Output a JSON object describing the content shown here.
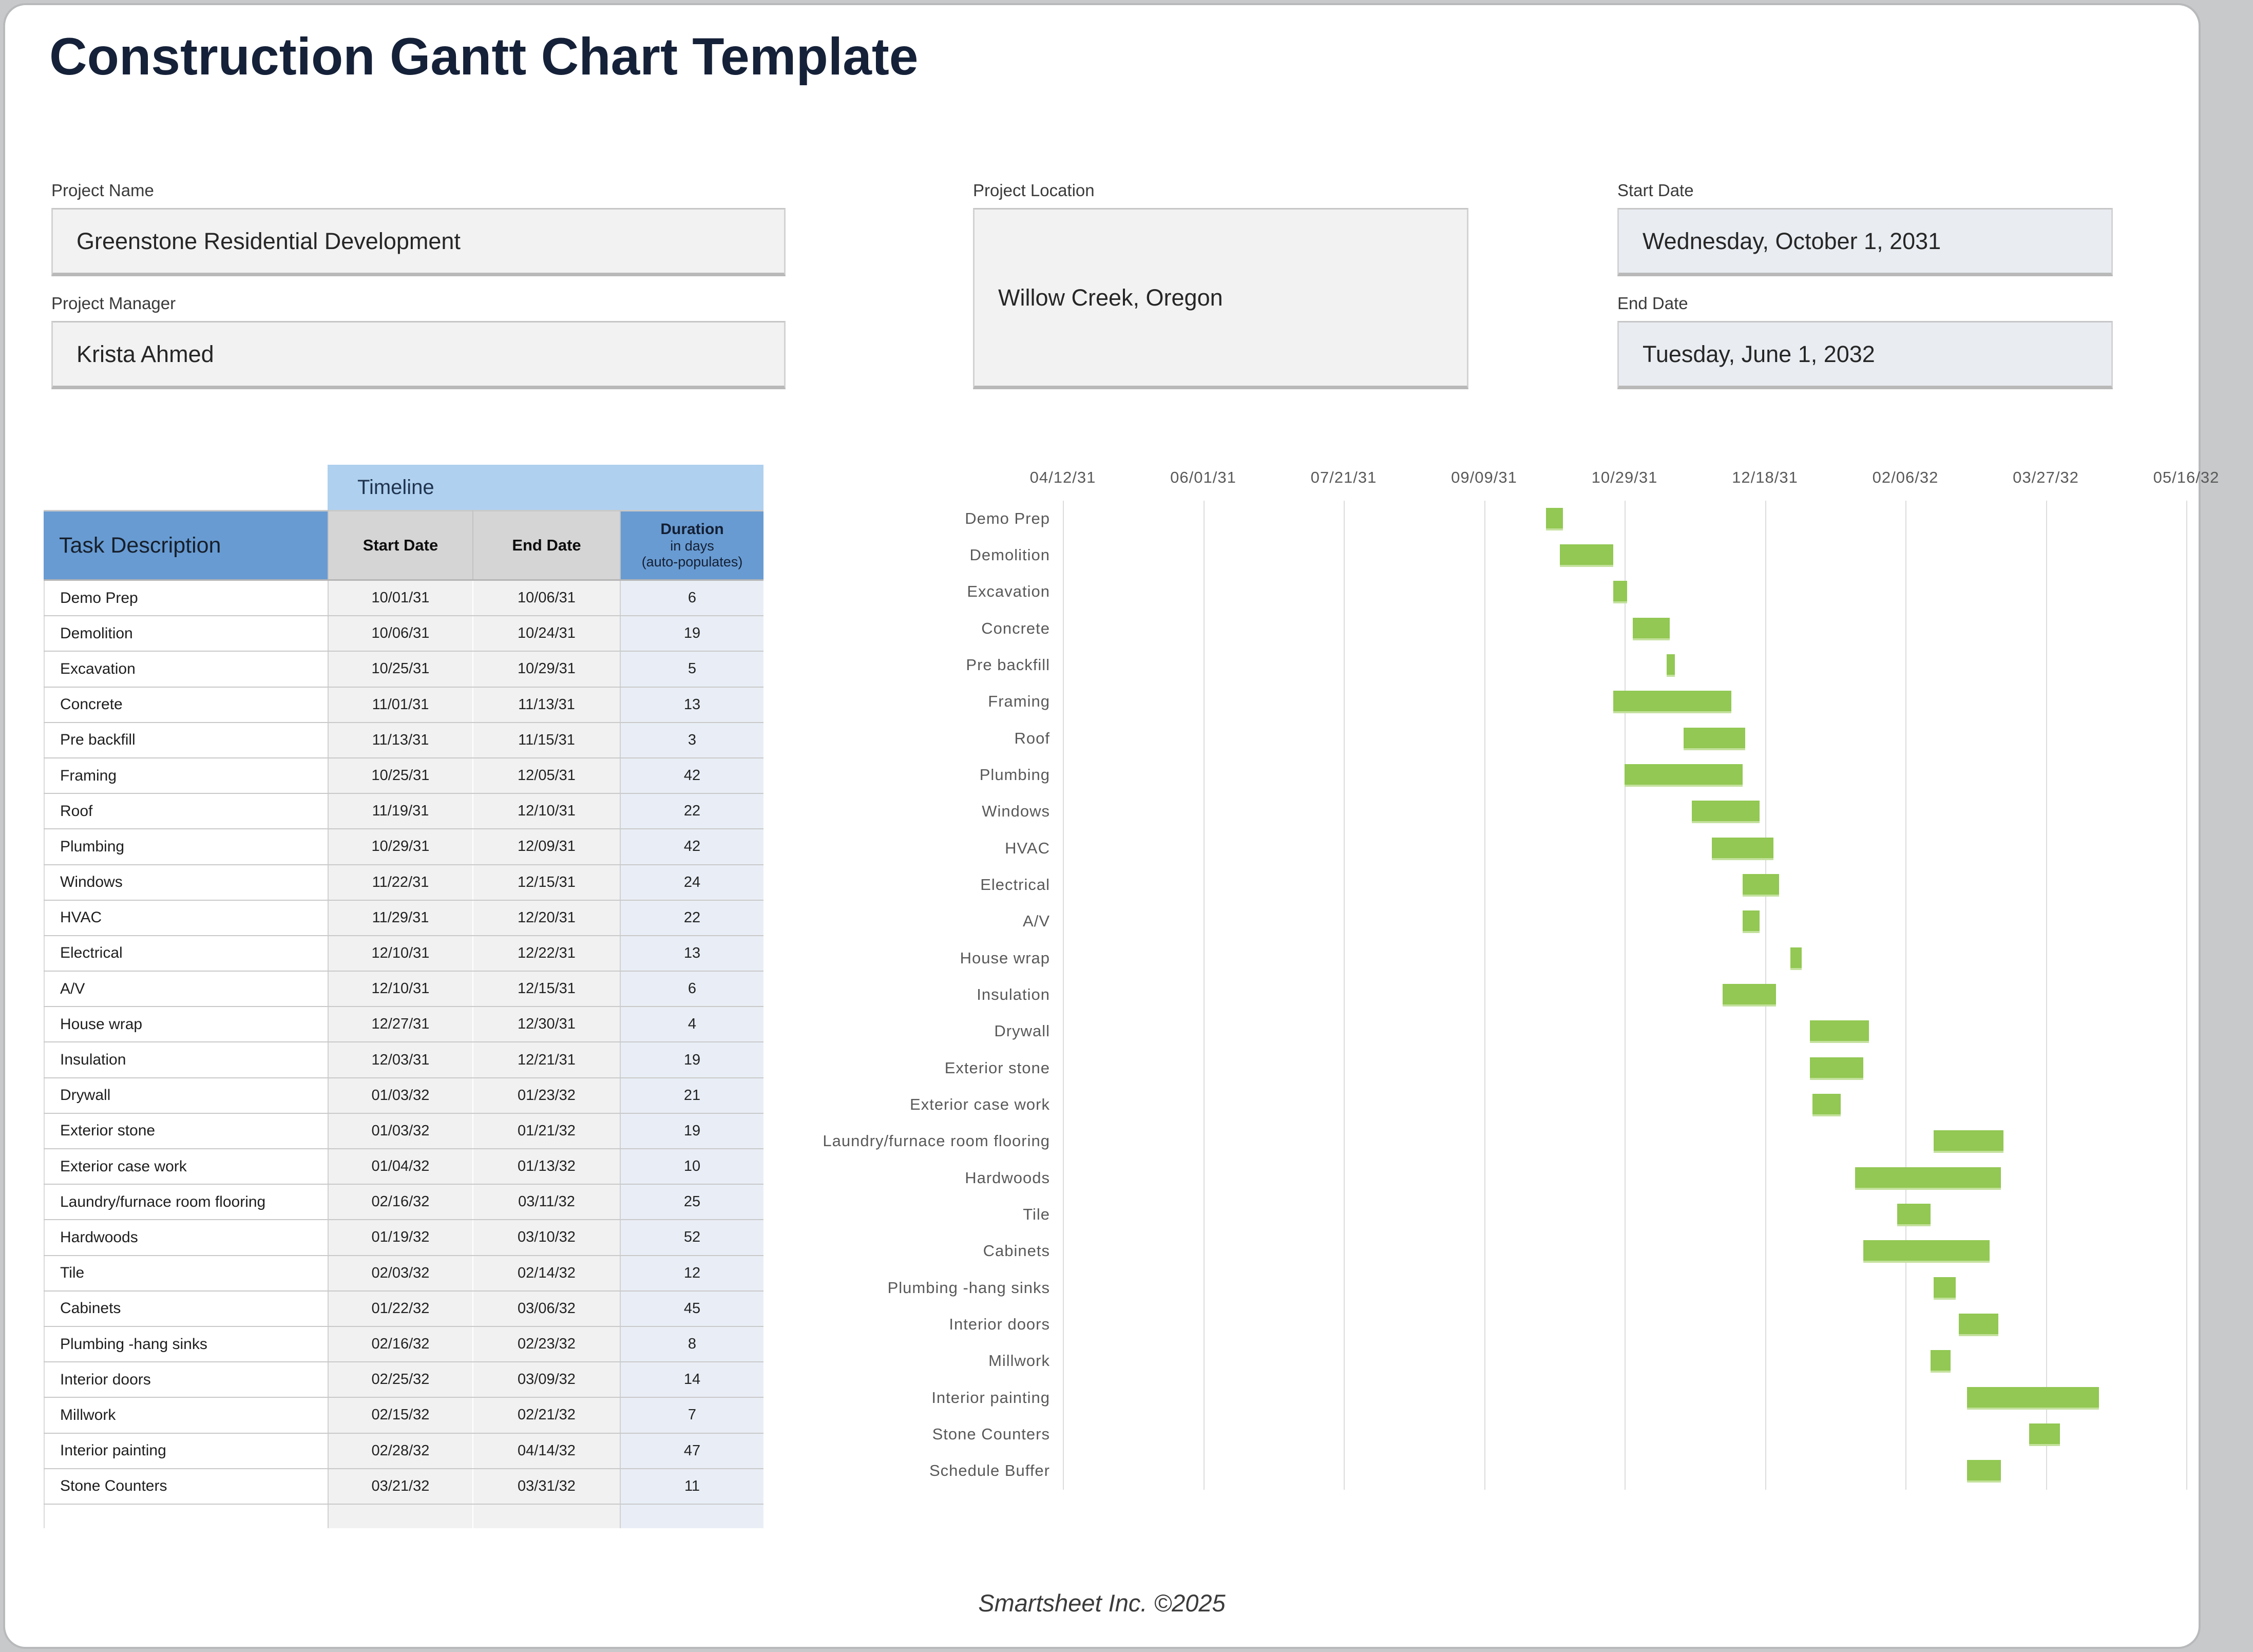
{
  "title": "Construction Gantt Chart Template",
  "fields": {
    "project_name": {
      "label": "Project Name",
      "value": "Greenstone Residential Development"
    },
    "project_manager": {
      "label": "Project Manager",
      "value": "Krista Ahmed"
    },
    "project_location": {
      "label": "Project Location",
      "value": "Willow Creek, Oregon"
    },
    "start_date": {
      "label": "Start Date",
      "value": "Wednesday, October 1, 2031"
    },
    "end_date": {
      "label": "End Date",
      "value": "Tuesday, June 1, 2032"
    }
  },
  "table": {
    "timeline_header": "Timeline",
    "columns": {
      "task": "Task Description",
      "start": "Start Date",
      "end": "End Date",
      "duration_title": "Duration",
      "duration_sub1": "in days",
      "duration_sub2": "(auto-populates)"
    },
    "rows": [
      {
        "task": "Demo Prep",
        "start": "10/01/31",
        "end": "10/06/31",
        "duration": "6"
      },
      {
        "task": "Demolition",
        "start": "10/06/31",
        "end": "10/24/31",
        "duration": "19"
      },
      {
        "task": "Excavation",
        "start": "10/25/31",
        "end": "10/29/31",
        "duration": "5"
      },
      {
        "task": "Concrete",
        "start": "11/01/31",
        "end": "11/13/31",
        "duration": "13"
      },
      {
        "task": "Pre backfill",
        "start": "11/13/31",
        "end": "11/15/31",
        "duration": "3"
      },
      {
        "task": "Framing",
        "start": "10/25/31",
        "end": "12/05/31",
        "duration": "42"
      },
      {
        "task": "Roof",
        "start": "11/19/31",
        "end": "12/10/31",
        "duration": "22"
      },
      {
        "task": "Plumbing",
        "start": "10/29/31",
        "end": "12/09/31",
        "duration": "42"
      },
      {
        "task": "Windows",
        "start": "11/22/31",
        "end": "12/15/31",
        "duration": "24"
      },
      {
        "task": "HVAC",
        "start": "11/29/31",
        "end": "12/20/31",
        "duration": "22"
      },
      {
        "task": "Electrical",
        "start": "12/10/31",
        "end": "12/22/31",
        "duration": "13"
      },
      {
        "task": "A/V",
        "start": "12/10/31",
        "end": "12/15/31",
        "duration": "6"
      },
      {
        "task": "House wrap",
        "start": "12/27/31",
        "end": "12/30/31",
        "duration": "4"
      },
      {
        "task": "Insulation",
        "start": "12/03/31",
        "end": "12/21/31",
        "duration": "19"
      },
      {
        "task": "Drywall",
        "start": "01/03/32",
        "end": "01/23/32",
        "duration": "21"
      },
      {
        "task": "Exterior stone",
        "start": "01/03/32",
        "end": "01/21/32",
        "duration": "19"
      },
      {
        "task": "Exterior case work",
        "start": "01/04/32",
        "end": "01/13/32",
        "duration": "10"
      },
      {
        "task": "Laundry/furnace room flooring",
        "start": "02/16/32",
        "end": "03/11/32",
        "duration": "25"
      },
      {
        "task": "Hardwoods",
        "start": "01/19/32",
        "end": "03/10/32",
        "duration": "52"
      },
      {
        "task": "Tile",
        "start": "02/03/32",
        "end": "02/14/32",
        "duration": "12"
      },
      {
        "task": "Cabinets",
        "start": "01/22/32",
        "end": "03/06/32",
        "duration": "45"
      },
      {
        "task": "Plumbing -hang sinks",
        "start": "02/16/32",
        "end": "02/23/32",
        "duration": "8"
      },
      {
        "task": "Interior doors",
        "start": "02/25/32",
        "end": "03/09/32",
        "duration": "14"
      },
      {
        "task": "Millwork",
        "start": "02/15/32",
        "end": "02/21/32",
        "duration": "7"
      },
      {
        "task": "Interior painting",
        "start": "02/28/32",
        "end": "04/14/32",
        "duration": "47"
      },
      {
        "task": "Stone Counters",
        "start": "03/21/32",
        "end": "03/31/32",
        "duration": "11"
      }
    ]
  },
  "chart_data": {
    "type": "gantt",
    "bar_color": "#92c853",
    "gridline_color": "#dcdcdc",
    "x_axis": {
      "tick_labels": [
        "04/12/31",
        "06/01/31",
        "07/21/31",
        "09/09/31",
        "10/29/31",
        "12/18/31",
        "02/06/32",
        "03/27/32",
        "05/16/32"
      ],
      "interval_days": 50
    },
    "tasks": [
      {
        "name": "Demo Prep",
        "start": "10/01/31",
        "end": "10/06/31",
        "duration_days": 6
      },
      {
        "name": "Demolition",
        "start": "10/06/31",
        "end": "10/24/31",
        "duration_days": 19
      },
      {
        "name": "Excavation",
        "start": "10/25/31",
        "end": "10/29/31",
        "duration_days": 5
      },
      {
        "name": "Concrete",
        "start": "11/01/31",
        "end": "11/13/31",
        "duration_days": 13
      },
      {
        "name": "Pre backfill",
        "start": "11/13/31",
        "end": "11/15/31",
        "duration_days": 3
      },
      {
        "name": "Framing",
        "start": "10/25/31",
        "end": "12/05/31",
        "duration_days": 42
      },
      {
        "name": "Roof",
        "start": "11/19/31",
        "end": "12/10/31",
        "duration_days": 22
      },
      {
        "name": "Plumbing",
        "start": "10/29/31",
        "end": "12/09/31",
        "duration_days": 42
      },
      {
        "name": "Windows",
        "start": "11/22/31",
        "end": "12/15/31",
        "duration_days": 24
      },
      {
        "name": "HVAC",
        "start": "11/29/31",
        "end": "12/20/31",
        "duration_days": 22
      },
      {
        "name": "Electrical",
        "start": "12/10/31",
        "end": "12/22/31",
        "duration_days": 13
      },
      {
        "name": "A/V",
        "start": "12/10/31",
        "end": "12/15/31",
        "duration_days": 6
      },
      {
        "name": "House wrap",
        "start": "12/27/31",
        "end": "12/30/31",
        "duration_days": 4
      },
      {
        "name": "Insulation",
        "start": "12/03/31",
        "end": "12/21/31",
        "duration_days": 19
      },
      {
        "name": "Drywall",
        "start": "01/03/32",
        "end": "01/23/32",
        "duration_days": 21
      },
      {
        "name": "Exterior stone",
        "start": "01/03/32",
        "end": "01/21/32",
        "duration_days": 19
      },
      {
        "name": "Exterior case work",
        "start": "01/04/32",
        "end": "01/13/32",
        "duration_days": 10
      },
      {
        "name": "Laundry/furnace room flooring",
        "start": "02/16/32",
        "end": "03/11/32",
        "duration_days": 25
      },
      {
        "name": "Hardwoods",
        "start": "01/19/32",
        "end": "03/10/32",
        "duration_days": 52
      },
      {
        "name": "Tile",
        "start": "02/03/32",
        "end": "02/14/32",
        "duration_days": 12
      },
      {
        "name": "Cabinets",
        "start": "01/22/32",
        "end": "03/06/32",
        "duration_days": 45
      },
      {
        "name": "Plumbing -hang sinks",
        "start": "02/16/32",
        "end": "02/23/32",
        "duration_days": 8
      },
      {
        "name": "Interior doors",
        "start": "02/25/32",
        "end": "03/09/32",
        "duration_days": 14
      },
      {
        "name": "Millwork",
        "start": "02/15/32",
        "end": "02/21/32",
        "duration_days": 7
      },
      {
        "name": "Interior painting",
        "start": "02/28/32",
        "end": "04/14/32",
        "duration_days": 47
      },
      {
        "name": "Stone Counters",
        "start": "03/21/32",
        "end": "03/31/32",
        "duration_days": 11
      },
      {
        "name": "Schedule Buffer",
        "start": "02/28/32",
        "end": "03/10/32",
        "duration_days": 12
      }
    ]
  },
  "footer": "Smartsheet Inc. ©2025"
}
